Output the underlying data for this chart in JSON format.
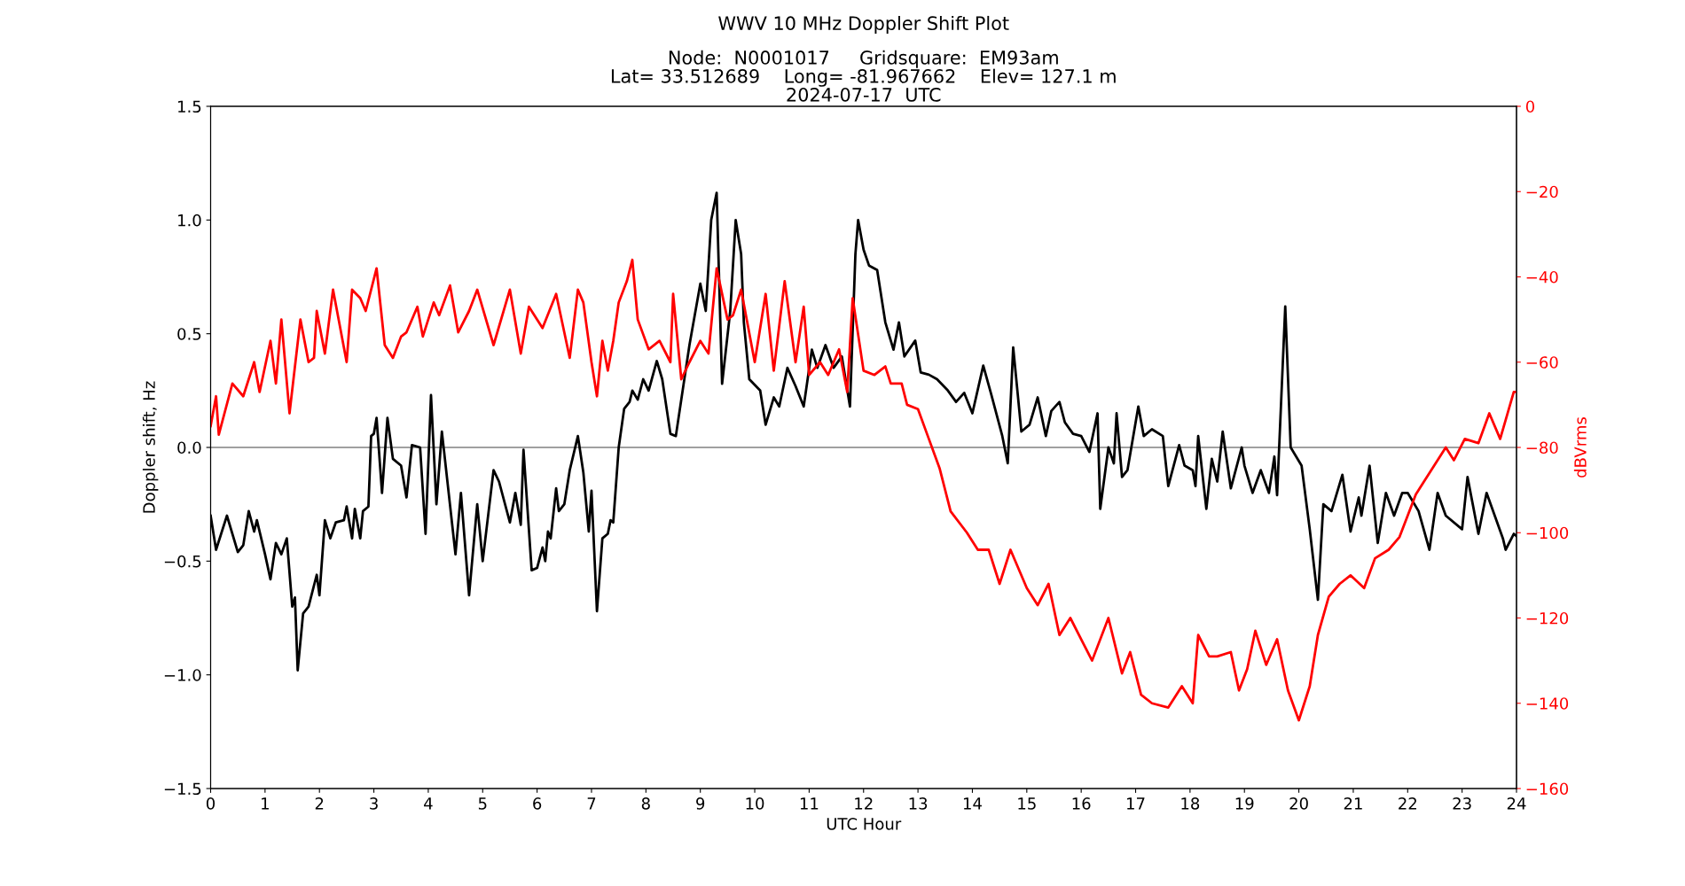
{
  "chart_data": {
    "type": "line",
    "title": "WWV 10 MHz Doppler Shift Plot",
    "subtitle": "Node:  N0001017     Gridsquare:  EM93am\nLat= 33.512689    Long= -81.967662    Elev= 127.1 m\n2024-07-17  UTC",
    "xlabel": "UTC Hour",
    "ylabel": "Doppler shift, Hz",
    "y2label": "dBVrms",
    "xlim": [
      0,
      24
    ],
    "xticks": [
      0,
      1,
      2,
      3,
      4,
      5,
      6,
      7,
      8,
      9,
      10,
      11,
      12,
      13,
      14,
      15,
      16,
      17,
      18,
      19,
      20,
      21,
      22,
      23,
      24
    ],
    "ylim": [
      -1.5,
      1.5
    ],
    "yticks": [
      {
        "value": -1.5,
        "label": "−1.5"
      },
      {
        "value": -1.0,
        "label": "−1.0"
      },
      {
        "value": -0.5,
        "label": "−0.5"
      },
      {
        "value": 0,
        "label": "0.0"
      },
      {
        "value": 0.5,
        "label": "0.5"
      },
      {
        "value": 1,
        "label": "1.0"
      },
      {
        "value": 1.5,
        "label": "1.5"
      }
    ],
    "y2lim": [
      -160,
      0
    ],
    "y2ticks": [
      {
        "value": -160,
        "label": "−160"
      },
      {
        "value": -140,
        "label": "−140"
      },
      {
        "value": -120,
        "label": "−120"
      },
      {
        "value": -100,
        "label": "−100"
      },
      {
        "value": -80,
        "label": "−80"
      },
      {
        "value": -60,
        "label": "−60"
      },
      {
        "value": -40,
        "label": "−40"
      },
      {
        "value": -20,
        "label": "−20"
      },
      0
    ],
    "grid": false,
    "line_style": "solid",
    "marker": "none",
    "ref_lines": [
      {
        "axis": "y",
        "value": 0,
        "color": "#808080"
      }
    ],
    "series": [
      {
        "color": "#000000",
        "axis": "y",
        "x": [
          0.0,
          0.1,
          0.3,
          0.5,
          0.6,
          0.7,
          0.8,
          0.85,
          1.0,
          1.1,
          1.2,
          1.3,
          1.4,
          1.5,
          1.55,
          1.6,
          1.7,
          1.8,
          1.95,
          2.0,
          2.1,
          2.2,
          2.3,
          2.45,
          2.5,
          2.6,
          2.65,
          2.75,
          2.8,
          2.9,
          2.95,
          3.0,
          3.05,
          3.15,
          3.25,
          3.35,
          3.5,
          3.6,
          3.7,
          3.85,
          3.95,
          4.05,
          4.15,
          4.25,
          4.5,
          4.6,
          4.75,
          4.9,
          5.0,
          5.2,
          5.3,
          5.5,
          5.6,
          5.7,
          5.75,
          5.9,
          6.0,
          6.1,
          6.15,
          6.2,
          6.25,
          6.35,
          6.4,
          6.5,
          6.6,
          6.75,
          6.85,
          6.95,
          7.0,
          7.1,
          7.2,
          7.3,
          7.35,
          7.4,
          7.5,
          7.6,
          7.7,
          7.75,
          7.85,
          7.95,
          8.05,
          8.2,
          8.3,
          8.45,
          8.55,
          8.8,
          9.0,
          9.1,
          9.2,
          9.3,
          9.4,
          9.55,
          9.65,
          9.75,
          9.8,
          9.9,
          10.1,
          10.2,
          10.35,
          10.45,
          10.6,
          10.75,
          10.9,
          11.05,
          11.15,
          11.3,
          11.45,
          11.6,
          11.75,
          11.85,
          11.9,
          12.0,
          12.1,
          12.25,
          12.4,
          12.55,
          12.65,
          12.75,
          12.95,
          13.05,
          13.2,
          13.35,
          13.55,
          13.7,
          13.85,
          14.0,
          14.2,
          14.35,
          14.55,
          14.65,
          14.75,
          14.9,
          15.05,
          15.2,
          15.35,
          15.45,
          15.6,
          15.7,
          15.85,
          16.0,
          16.15,
          16.3,
          16.35,
          16.5,
          16.6,
          16.65,
          16.75,
          16.85,
          17.05,
          17.15,
          17.3,
          17.5,
          17.6,
          17.8,
          17.9,
          18.05,
          18.1,
          18.15,
          18.3,
          18.4,
          18.5,
          18.6,
          18.75,
          18.95,
          19.0,
          19.15,
          19.3,
          19.45,
          19.55,
          19.6,
          19.75,
          19.85,
          20.05,
          20.2,
          20.35,
          20.45,
          20.6,
          20.8,
          20.95,
          21.1,
          21.15,
          21.3,
          21.45,
          21.6,
          21.75,
          21.9,
          22.0,
          22.2,
          22.4,
          22.55,
          22.7,
          23.0,
          23.1,
          23.3,
          23.45,
          23.6,
          23.75,
          23.8,
          23.95,
          24.0
        ],
        "values": [
          -0.3,
          -0.45,
          -0.3,
          -0.46,
          -0.43,
          -0.28,
          -0.37,
          -0.32,
          -0.47,
          -0.58,
          -0.42,
          -0.47,
          -0.4,
          -0.7,
          -0.66,
          -0.98,
          -0.73,
          -0.7,
          -0.56,
          -0.65,
          -0.32,
          -0.4,
          -0.33,
          -0.32,
          -0.26,
          -0.4,
          -0.27,
          -0.4,
          -0.28,
          -0.26,
          0.05,
          0.06,
          0.13,
          -0.2,
          0.13,
          -0.05,
          -0.08,
          -0.22,
          0.01,
          0.0,
          -0.38,
          0.23,
          -0.25,
          0.07,
          -0.47,
          -0.2,
          -0.65,
          -0.25,
          -0.5,
          -0.1,
          -0.15,
          -0.33,
          -0.2,
          -0.34,
          -0.01,
          -0.54,
          -0.53,
          -0.44,
          -0.5,
          -0.37,
          -0.4,
          -0.18,
          -0.28,
          -0.25,
          -0.1,
          0.05,
          -0.11,
          -0.37,
          -0.19,
          -0.72,
          -0.4,
          -0.38,
          -0.32,
          -0.33,
          0.0,
          0.17,
          0.2,
          0.25,
          0.21,
          0.3,
          0.25,
          0.38,
          0.3,
          0.06,
          0.05,
          0.45,
          0.72,
          0.6,
          1.0,
          1.12,
          0.28,
          0.6,
          1.0,
          0.85,
          0.55,
          0.3,
          0.25,
          0.1,
          0.22,
          0.18,
          0.35,
          0.27,
          0.18,
          0.43,
          0.35,
          0.45,
          0.35,
          0.4,
          0.18,
          0.85,
          1.0,
          0.87,
          0.8,
          0.78,
          0.55,
          0.43,
          0.55,
          0.4,
          0.47,
          0.33,
          0.32,
          0.3,
          0.25,
          0.2,
          0.24,
          0.15,
          0.36,
          0.23,
          0.05,
          -0.07,
          0.44,
          0.07,
          0.1,
          0.22,
          0.05,
          0.16,
          0.2,
          0.11,
          0.06,
          0.05,
          -0.02,
          0.15,
          -0.27,
          0.0,
          -0.07,
          0.15,
          -0.13,
          -0.1,
          0.18,
          0.05,
          0.08,
          0.05,
          -0.17,
          0.01,
          -0.08,
          -0.1,
          -0.17,
          0.05,
          -0.27,
          -0.05,
          -0.15,
          0.07,
          -0.18,
          0.0,
          -0.08,
          -0.2,
          -0.1,
          -0.2,
          -0.04,
          -0.21,
          0.62,
          0.0,
          -0.08,
          -0.36,
          -0.67,
          -0.25,
          -0.28,
          -0.12,
          -0.37,
          -0.22,
          -0.3,
          -0.08,
          -0.42,
          -0.2,
          -0.3,
          -0.2,
          -0.2,
          -0.28,
          -0.45,
          -0.2,
          -0.3,
          -0.36,
          -0.13,
          -0.38,
          -0.2,
          -0.3,
          -0.4,
          -0.45,
          -0.38,
          -0.39
        ]
      },
      {
        "color": "#ff0000",
        "axis": "y2",
        "x": [
          0.0,
          0.1,
          0.15,
          0.4,
          0.6,
          0.8,
          0.9,
          1.1,
          1.2,
          1.3,
          1.45,
          1.65,
          1.8,
          1.9,
          1.95,
          2.1,
          2.25,
          2.5,
          2.6,
          2.75,
          2.85,
          3.05,
          3.2,
          3.35,
          3.5,
          3.6,
          3.8,
          3.9,
          4.1,
          4.2,
          4.4,
          4.55,
          4.75,
          4.9,
          5.2,
          5.5,
          5.7,
          5.85,
          6.1,
          6.35,
          6.6,
          6.75,
          6.85,
          7.0,
          7.1,
          7.2,
          7.3,
          7.4,
          7.5,
          7.65,
          7.75,
          7.85,
          8.05,
          8.25,
          8.45,
          8.5,
          8.65,
          8.8,
          9.0,
          9.15,
          9.3,
          9.5,
          9.6,
          9.75,
          10.0,
          10.2,
          10.35,
          10.55,
          10.75,
          10.9,
          11.0,
          11.2,
          11.35,
          11.55,
          11.7,
          11.8,
          12.0,
          12.2,
          12.4,
          12.5,
          12.7,
          12.8,
          13.0,
          13.2,
          13.4,
          13.6,
          13.9,
          14.1,
          14.3,
          14.5,
          14.7,
          15.0,
          15.2,
          15.4,
          15.6,
          15.8,
          16.0,
          16.2,
          16.5,
          16.75,
          16.9,
          17.1,
          17.3,
          17.6,
          17.85,
          18.05,
          18.15,
          18.35,
          18.5,
          18.75,
          18.9,
          19.05,
          19.2,
          19.4,
          19.6,
          19.8,
          20.0,
          20.2,
          20.35,
          20.55,
          20.75,
          20.95,
          21.2,
          21.4,
          21.65,
          21.85,
          22.15,
          22.3,
          22.5,
          22.7,
          22.85,
          23.05,
          23.3,
          23.5,
          23.7,
          23.95,
          24.0
        ],
        "values": [
          -75,
          -68,
          -77,
          -65,
          -68,
          -60,
          -67,
          -55,
          -65,
          -50,
          -72,
          -50,
          -60,
          -59,
          -48,
          -58,
          -43,
          -60,
          -43,
          -45,
          -48,
          -38,
          -56,
          -59,
          -54,
          -53,
          -47,
          -54,
          -46,
          -49,
          -42,
          -53,
          -48,
          -43,
          -56,
          -43,
          -58,
          -47,
          -52,
          -44,
          -59,
          -43,
          -46,
          -60,
          -68,
          -55,
          -62,
          -55,
          -46,
          -41,
          -36,
          -50,
          -57,
          -55,
          -60,
          -44,
          -64,
          -60,
          -55,
          -58,
          -38,
          -50,
          -49,
          -43,
          -60,
          -44,
          -62,
          -41,
          -60,
          -47,
          -63,
          -60,
          -63,
          -57,
          -67,
          -45,
          -62,
          -63,
          -61,
          -65,
          -65,
          -70,
          -71,
          -78,
          -85,
          -95,
          -100,
          -104,
          -104,
          -112,
          -104,
          -113,
          -117,
          -112,
          -124,
          -120,
          -125,
          -130,
          -120,
          -133,
          -128,
          -138,
          -140,
          -141,
          -136,
          -140,
          -124,
          -129,
          -129,
          -128,
          -137,
          -132,
          -123,
          -131,
          -125,
          -137,
          -144,
          -136,
          -124,
          -115,
          -112,
          -110,
          -113,
          -106,
          -104,
          -101,
          -91,
          -88,
          -84,
          -80,
          -83,
          -78,
          -79,
          -72,
          -78,
          -67,
          -67
        ]
      }
    ]
  }
}
